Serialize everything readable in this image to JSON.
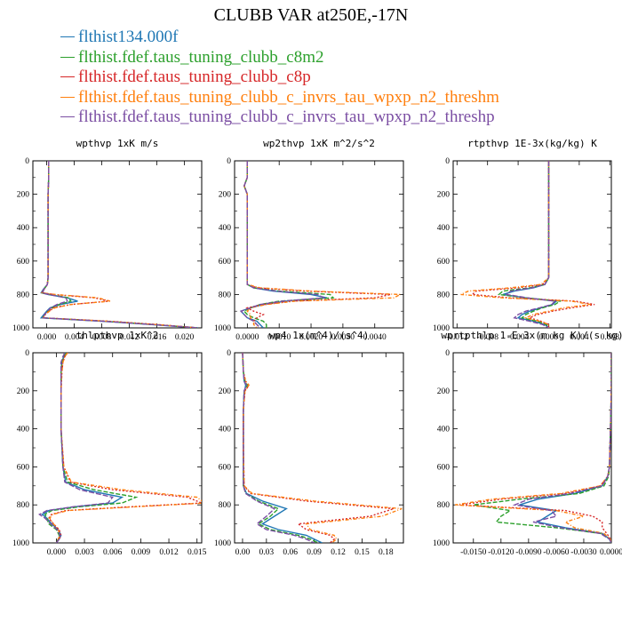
{
  "title": "CLUBB VAR at250E,-17N",
  "legend": [
    {
      "label": "flthist134.000f",
      "color": "#1f77b4",
      "dash": ""
    },
    {
      "label": "flthist.fdef.taus_tuning_clubb_c8m2",
      "color": "#2ca02c",
      "dash": "5,2"
    },
    {
      "label": "flthist.fdef.taus_tuning_clubb_c8p",
      "color": "#d62728",
      "dash": "2,2"
    },
    {
      "label": "flthist.fdef.taus_tuning_clubb_c_invrs_tau_wpxp_n2_threshm",
      "color": "#ff7f0e",
      "dash": "4,2,1,2"
    },
    {
      "label": "flthist.fdef.taus_tuning_clubb_c_invrs_tau_wpxp_n2_threshp",
      "color": "#7b4ea3",
      "dash": "6,2"
    }
  ],
  "chart_data": [
    {
      "type": "line",
      "title": "wpthvp  1xK m/s",
      "xlim": [
        -0.002,
        0.0225
      ],
      "xticks": [
        "0.000",
        "0.004",
        "0.008",
        "0.012",
        "0.016",
        "0.020"
      ],
      "xtick_values": [
        0,
        0.004,
        0.008,
        0.012,
        0.016,
        0.02
      ],
      "ylim": [
        1000,
        0
      ],
      "yticks": [
        "0",
        "200",
        "400",
        "600",
        "800",
        "1000"
      ],
      "y": [
        0,
        100,
        200,
        300,
        400,
        500,
        600,
        700,
        740,
        770,
        790,
        800,
        820,
        840,
        860,
        880,
        900,
        920,
        940,
        960,
        980,
        1000
      ],
      "series": [
        {
          "values": [
            0.0003,
            0.0003,
            0.0002,
            0.0002,
            0.0002,
            0.0002,
            0.0002,
            0.0002,
            0.0001,
            -0.0005,
            -0.0008,
            0.0002,
            0.003,
            0.0045,
            0.002,
            0.0005,
            0.0,
            -0.0004,
            -0.0008,
            0.008,
            0.015,
            0.022
          ]
        },
        {
          "values": [
            0.0003,
            0.0003,
            0.0002,
            0.0002,
            0.0002,
            0.0002,
            0.0002,
            0.0002,
            0.0001,
            -0.0004,
            -0.0006,
            0.0005,
            0.0032,
            0.0035,
            0.0018,
            0.0008,
            0.0002,
            -0.0003,
            -0.0006,
            0.0085,
            0.0155,
            0.022
          ]
        },
        {
          "values": [
            0.0003,
            0.0003,
            0.0002,
            0.0002,
            0.0002,
            0.0002,
            0.0002,
            0.0002,
            0.0001,
            -0.0004,
            -0.0007,
            0.001,
            0.007,
            0.009,
            0.0035,
            0.001,
            0.0003,
            -0.0002,
            -0.0005,
            0.009,
            0.016,
            0.022
          ]
        },
        {
          "values": [
            0.0003,
            0.0003,
            0.0002,
            0.0002,
            0.0002,
            0.0002,
            0.0002,
            0.0002,
            0.0001,
            -0.0004,
            -0.0007,
            0.0012,
            0.0075,
            0.0092,
            0.0035,
            0.0012,
            0.0004,
            -0.0002,
            -0.0005,
            0.0088,
            0.0158,
            0.022
          ]
        },
        {
          "values": [
            0.0003,
            0.0003,
            0.0002,
            0.0002,
            0.0002,
            0.0002,
            0.0002,
            0.0002,
            0.0001,
            -0.0004,
            -0.0006,
            0.0003,
            0.0028,
            0.003,
            0.0015,
            0.0006,
            0.0001,
            -0.0003,
            -0.0006,
            0.0082,
            0.0152,
            0.022
          ]
        }
      ]
    },
    {
      "type": "line",
      "title": "wp2thvp  1xK m^2/s^2",
      "xlim": [
        -0.0004,
        0.0049
      ],
      "xticks": [
        "0.0000",
        "0.0010",
        "0.0020",
        "0.0030",
        "0.0040"
      ],
      "xtick_values": [
        0,
        0.001,
        0.002,
        0.003,
        0.004
      ],
      "ylim": [
        1000,
        0
      ],
      "yticks": [
        "0",
        "200",
        "400",
        "600",
        "800",
        "1000"
      ],
      "y": [
        0,
        100,
        150,
        200,
        300,
        500,
        700,
        740,
        760,
        780,
        800,
        820,
        840,
        860,
        880,
        900,
        920,
        940,
        960,
        980,
        1000
      ],
      "series": [
        {
          "values": [
            0.0,
            0.0,
            -0.0001,
            0.0,
            0.0,
            0.0,
            0.0,
            0.0,
            0.0002,
            0.0008,
            0.002,
            0.0025,
            0.0012,
            0.0005,
            0.0001,
            -0.0002,
            -0.0001,
            0.0,
            0.0003,
            0.0004,
            0.0005
          ]
        },
        {
          "values": [
            0.0,
            0.0,
            -0.0001,
            0.0,
            0.0,
            0.0,
            0.0,
            0.0,
            0.0002,
            0.001,
            0.0026,
            0.0027,
            0.001,
            0.0004,
            0.0001,
            -0.0001,
            0.0,
            0.0002,
            0.0005,
            0.0006,
            0.0006
          ]
        },
        {
          "values": [
            0.0,
            0.0,
            -0.0001,
            0.0,
            0.0,
            0.0,
            0.0,
            0.0,
            0.0003,
            0.0018,
            0.0045,
            0.004,
            0.0014,
            0.0005,
            0.0,
            0.0002,
            0.0005,
            0.0003,
            0.0002,
            0.0003,
            0.0004
          ]
        },
        {
          "values": [
            0.0,
            0.0,
            -0.0001,
            0.0,
            0.0,
            0.0,
            0.0,
            0.0,
            0.0004,
            0.002,
            0.0048,
            0.0046,
            0.0015,
            0.0006,
            0.0001,
            0.0,
            0.0001,
            0.0001,
            0.0002,
            0.0002,
            0.0003
          ]
        },
        {
          "values": [
            0.0,
            0.0,
            -0.0001,
            0.0,
            0.0,
            0.0,
            0.0,
            0.0,
            0.0002,
            0.0009,
            0.0022,
            0.0024,
            0.0011,
            0.0004,
            0.0001,
            -0.0002,
            -0.0001,
            0.0,
            0.0002,
            0.0003,
            0.0004
          ]
        }
      ]
    },
    {
      "type": "line",
      "title": "rtpthvp  1E-3x(kg/kg) K",
      "xlim": [
        -0.0125,
        0.0082
      ],
      "xticks": [
        "-0.012",
        "-0.008",
        "-0.004",
        "0.000",
        "0.004",
        "0.008"
      ],
      "xtick_values": [
        -0.012,
        -0.008,
        -0.004,
        0,
        0.004,
        0.008
      ],
      "ylim": [
        1000,
        0
      ],
      "yticks": [
        "0",
        "200",
        "400",
        "600",
        "800",
        "1000"
      ],
      "y": [
        0,
        200,
        400,
        600,
        700,
        740,
        760,
        780,
        800,
        820,
        840,
        860,
        880,
        900,
        920,
        940,
        960,
        980,
        1000
      ],
      "series": [
        {
          "values": [
            0.0,
            0.0,
            0.0,
            0.0,
            0.0,
            -0.0005,
            -0.002,
            -0.0045,
            -0.006,
            -0.003,
            0.001,
            0.0005,
            -0.001,
            -0.0025,
            -0.0035,
            -0.004,
            -0.002,
            -0.0005,
            0.0
          ]
        },
        {
          "values": [
            0.0,
            0.0,
            0.0,
            0.0,
            0.0,
            -0.0005,
            -0.0025,
            -0.006,
            -0.0065,
            -0.003,
            0.0015,
            0.0008,
            -0.0008,
            -0.002,
            -0.003,
            -0.0035,
            -0.0015,
            -0.0003,
            0.0
          ]
        },
        {
          "values": [
            0.0,
            0.0,
            0.0,
            0.0,
            0.0,
            -0.0008,
            -0.004,
            -0.0095,
            -0.01,
            -0.005,
            0.0035,
            0.006,
            0.003,
            0.0005,
            -0.0015,
            -0.0025,
            -0.001,
            0.0,
            0.0
          ]
        },
        {
          "values": [
            0.0,
            0.0,
            0.0,
            0.0,
            0.0,
            -0.001,
            -0.005,
            -0.0105,
            -0.0115,
            -0.006,
            0.003,
            0.0055,
            0.002,
            0.0,
            -0.002,
            -0.003,
            -0.0012,
            0.0,
            0.0
          ]
        },
        {
          "values": [
            0.0,
            0.0,
            0.0,
            0.0,
            0.0,
            -0.0005,
            -0.0022,
            -0.005,
            -0.0055,
            -0.0028,
            0.0008,
            0.0004,
            -0.0012,
            -0.003,
            -0.004,
            -0.0045,
            -0.0025,
            -0.0008,
            0.0
          ]
        }
      ]
    },
    {
      "type": "line",
      "title": "thlpthvp  1xK^2",
      "xlim": [
        -0.0025,
        0.0155
      ],
      "xticks": [
        "0.000",
        "0.003",
        "0.006",
        "0.009",
        "0.012",
        "0.015"
      ],
      "xtick_values": [
        0,
        0.003,
        0.006,
        0.009,
        0.012,
        0.015
      ],
      "ylim": [
        1000,
        0
      ],
      "yticks": [
        "0",
        "200",
        "400",
        "600",
        "800",
        "1000"
      ],
      "y": [
        0,
        20,
        50,
        100,
        200,
        400,
        600,
        680,
        720,
        760,
        790,
        810,
        830,
        850,
        870,
        900,
        930,
        960,
        980,
        1000
      ],
      "series": [
        {
          "values": [
            0.001,
            0.0008,
            0.0006,
            0.0005,
            0.0005,
            0.0005,
            0.0007,
            0.001,
            0.003,
            0.007,
            0.006,
            0.002,
            -0.0008,
            -0.0015,
            -0.001,
            -0.0005,
            0.0002,
            0.0005,
            0.0003,
            0.0
          ]
        },
        {
          "values": [
            0.001,
            0.0008,
            0.0006,
            0.0005,
            0.0005,
            0.0005,
            0.0007,
            0.0012,
            0.004,
            0.0085,
            0.007,
            0.0025,
            -0.0005,
            -0.0012,
            -0.001,
            -0.0008,
            0.0,
            0.0003,
            0.0002,
            0.0
          ]
        },
        {
          "values": [
            0.0012,
            0.0009,
            0.0007,
            0.0006,
            0.0005,
            0.0005,
            0.0008,
            0.0015,
            0.006,
            0.014,
            0.0155,
            0.008,
            0.001,
            -0.0005,
            -0.0008,
            -0.0003,
            0.0003,
            0.0005,
            0.0003,
            0.0
          ]
        },
        {
          "values": [
            0.0012,
            0.0009,
            0.0007,
            0.0006,
            0.0005,
            0.0005,
            0.0008,
            0.0016,
            0.007,
            0.015,
            0.0158,
            0.0085,
            0.0012,
            -0.0004,
            -0.0007,
            -0.0003,
            0.0002,
            0.0004,
            0.0002,
            0.0
          ]
        },
        {
          "values": [
            0.0009,
            0.0007,
            0.0005,
            0.0005,
            0.0005,
            0.0005,
            0.0007,
            0.0009,
            0.0025,
            0.006,
            0.0055,
            0.0018,
            -0.001,
            -0.0018,
            -0.0012,
            -0.0006,
            0.0001,
            0.0004,
            0.0003,
            0.0
          ]
        }
      ]
    },
    {
      "type": "line",
      "title": "wp4  1x(m^4)/(s^4)",
      "xlim": [
        -0.01,
        0.202
      ],
      "xticks": [
        "0.00",
        "0.03",
        "0.06",
        "0.09",
        "0.12",
        "0.15",
        "0.18"
      ],
      "xtick_values": [
        0,
        0.03,
        0.06,
        0.09,
        0.12,
        0.15,
        0.18
      ],
      "ylim": [
        1000,
        0
      ],
      "yticks": [
        "0",
        "200",
        "400",
        "600",
        "800",
        "1000"
      ],
      "y": [
        0,
        100,
        150,
        170,
        190,
        200,
        300,
        500,
        700,
        740,
        780,
        820,
        860,
        900,
        930,
        960,
        980,
        1000
      ],
      "series": [
        {
          "values": [
            0.0,
            0.001,
            0.002,
            0.004,
            0.003,
            0.002,
            0.001,
            0.001,
            0.001,
            0.005,
            0.025,
            0.055,
            0.04,
            0.025,
            0.045,
            0.08,
            0.09,
            0.1
          ]
        },
        {
          "values": [
            0.0,
            0.001,
            0.003,
            0.006,
            0.004,
            0.002,
            0.001,
            0.001,
            0.001,
            0.004,
            0.02,
            0.045,
            0.035,
            0.02,
            0.035,
            0.07,
            0.085,
            0.095
          ]
        },
        {
          "values": [
            0.0,
            0.001,
            0.004,
            0.008,
            0.005,
            0.003,
            0.001,
            0.001,
            0.002,
            0.01,
            0.08,
            0.19,
            0.16,
            0.07,
            0.08,
            0.11,
            0.115,
            0.11
          ]
        },
        {
          "values": [
            0.0,
            0.001,
            0.004,
            0.008,
            0.005,
            0.003,
            0.001,
            0.001,
            0.002,
            0.012,
            0.09,
            0.2,
            0.175,
            0.08,
            0.085,
            0.115,
            0.118,
            0.112
          ]
        },
        {
          "values": [
            0.0,
            0.001,
            0.002,
            0.005,
            0.003,
            0.002,
            0.001,
            0.001,
            0.001,
            0.004,
            0.018,
            0.04,
            0.03,
            0.018,
            0.03,
            0.065,
            0.08,
            0.09
          ]
        }
      ]
    },
    {
      "type": "line",
      "title": "wprtpthlp  1-E-3x(m kg K)/(s kg)",
      "xlim": [
        -0.0172,
        0.0
      ],
      "xticks": [
        "-0.0150",
        "-0.0120",
        "-0.0090",
        "-0.0060",
        "-0.0030",
        "0.0000"
      ],
      "xtick_values": [
        -0.015,
        -0.012,
        -0.009,
        -0.006,
        -0.003,
        0
      ],
      "ylim": [
        1000,
        0
      ],
      "yticks": [
        "0",
        "200",
        "400",
        "600",
        "800",
        "1000"
      ],
      "y": [
        0,
        200,
        400,
        600,
        650,
        700,
        740,
        770,
        800,
        830,
        860,
        890,
        920,
        950,
        980,
        1000
      ],
      "series": [
        {
          "values": [
            0.0,
            0.0,
            -0.0001,
            -0.0002,
            -0.0004,
            -0.001,
            -0.004,
            -0.008,
            -0.01,
            -0.006,
            -0.007,
            -0.008,
            -0.005,
            -0.001,
            -0.0002,
            0.0
          ]
        },
        {
          "values": [
            0.0,
            0.0,
            -0.0001,
            -0.0002,
            -0.0003,
            -0.0008,
            -0.0035,
            -0.01,
            -0.015,
            -0.011,
            -0.012,
            -0.0125,
            -0.006,
            -0.0012,
            -0.0002,
            0.0
          ]
        },
        {
          "values": [
            0.0,
            0.0,
            -0.0001,
            -0.0002,
            -0.0004,
            -0.0012,
            -0.005,
            -0.012,
            -0.0165,
            -0.005,
            -0.002,
            -0.001,
            -0.001,
            -0.0005,
            -0.0001,
            0.0
          ]
        },
        {
          "values": [
            0.0,
            0.0,
            -0.0001,
            -0.0002,
            -0.0004,
            -0.0012,
            -0.0055,
            -0.013,
            -0.017,
            -0.006,
            -0.003,
            -0.005,
            -0.004,
            -0.0008,
            -0.0001,
            0.0
          ]
        },
        {
          "values": [
            0.0,
            0.0,
            -0.0001,
            -0.0002,
            -0.0004,
            -0.001,
            -0.0045,
            -0.009,
            -0.0105,
            -0.0065,
            -0.006,
            -0.0085,
            -0.0055,
            -0.0012,
            -0.0002,
            0.0
          ]
        }
      ]
    }
  ]
}
